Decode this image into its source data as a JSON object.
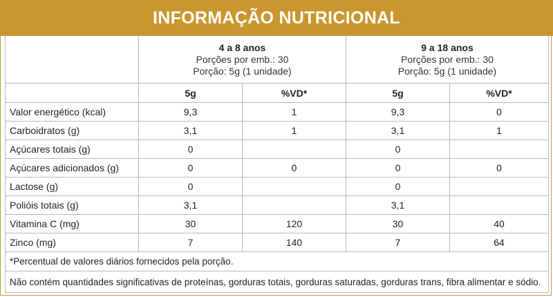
{
  "title": "INFORMAÇÃO NUTRICIONAL",
  "groups": [
    {
      "age": "4 a 8 anos",
      "servings": "Porções por emb.: 30",
      "portion": "Porção: 5g (1 unidade)"
    },
    {
      "age": "9 a 18 anos",
      "servings": "Porções por emb.: 30",
      "portion": "Porção: 5g (1 unidade)"
    }
  ],
  "columns": {
    "amount": "5g",
    "dv": "%VD*"
  },
  "rows": [
    {
      "label": "Valor energético (kcal)",
      "g1_amount": "9,3",
      "g1_dv": "1",
      "g2_amount": "9,3",
      "g2_dv": "0"
    },
    {
      "label": "Carboidratos (g)",
      "g1_amount": "3,1",
      "g1_dv": "1",
      "g2_amount": "3,1",
      "g2_dv": "1"
    },
    {
      "label": "Açúcares totais (g)",
      "g1_amount": "0",
      "g1_dv": "",
      "g2_amount": "0",
      "g2_dv": ""
    },
    {
      "label": "Açúcares adicionados (g)",
      "g1_amount": "0",
      "g1_dv": "0",
      "g2_amount": "0",
      "g2_dv": "0"
    },
    {
      "label": "Lactose (g)",
      "g1_amount": "0",
      "g1_dv": "",
      "g2_amount": "0",
      "g2_dv": ""
    },
    {
      "label": "Polióis totais (g)",
      "g1_amount": "3,1",
      "g1_dv": "",
      "g2_amount": "3,1",
      "g2_dv": ""
    },
    {
      "label": "Vitamina C (mg)",
      "g1_amount": "30",
      "g1_dv": "120",
      "g2_amount": "30",
      "g2_dv": "40"
    },
    {
      "label": "Zinco (mg)",
      "g1_amount": "7",
      "g1_dv": "140",
      "g2_amount": "7",
      "g2_dv": "64"
    }
  ],
  "footnote": "*Percentual de valores diários fornecidos pela porção.",
  "disclaimer": "Não contém quantidades significativas de proteínas, gorduras totais, gorduras saturadas, gorduras trans, fibra alimentar e sódio.",
  "colors": {
    "header_bg": "#c9962e",
    "header_text": "#ffffff",
    "grid": "#b9b9b9"
  }
}
